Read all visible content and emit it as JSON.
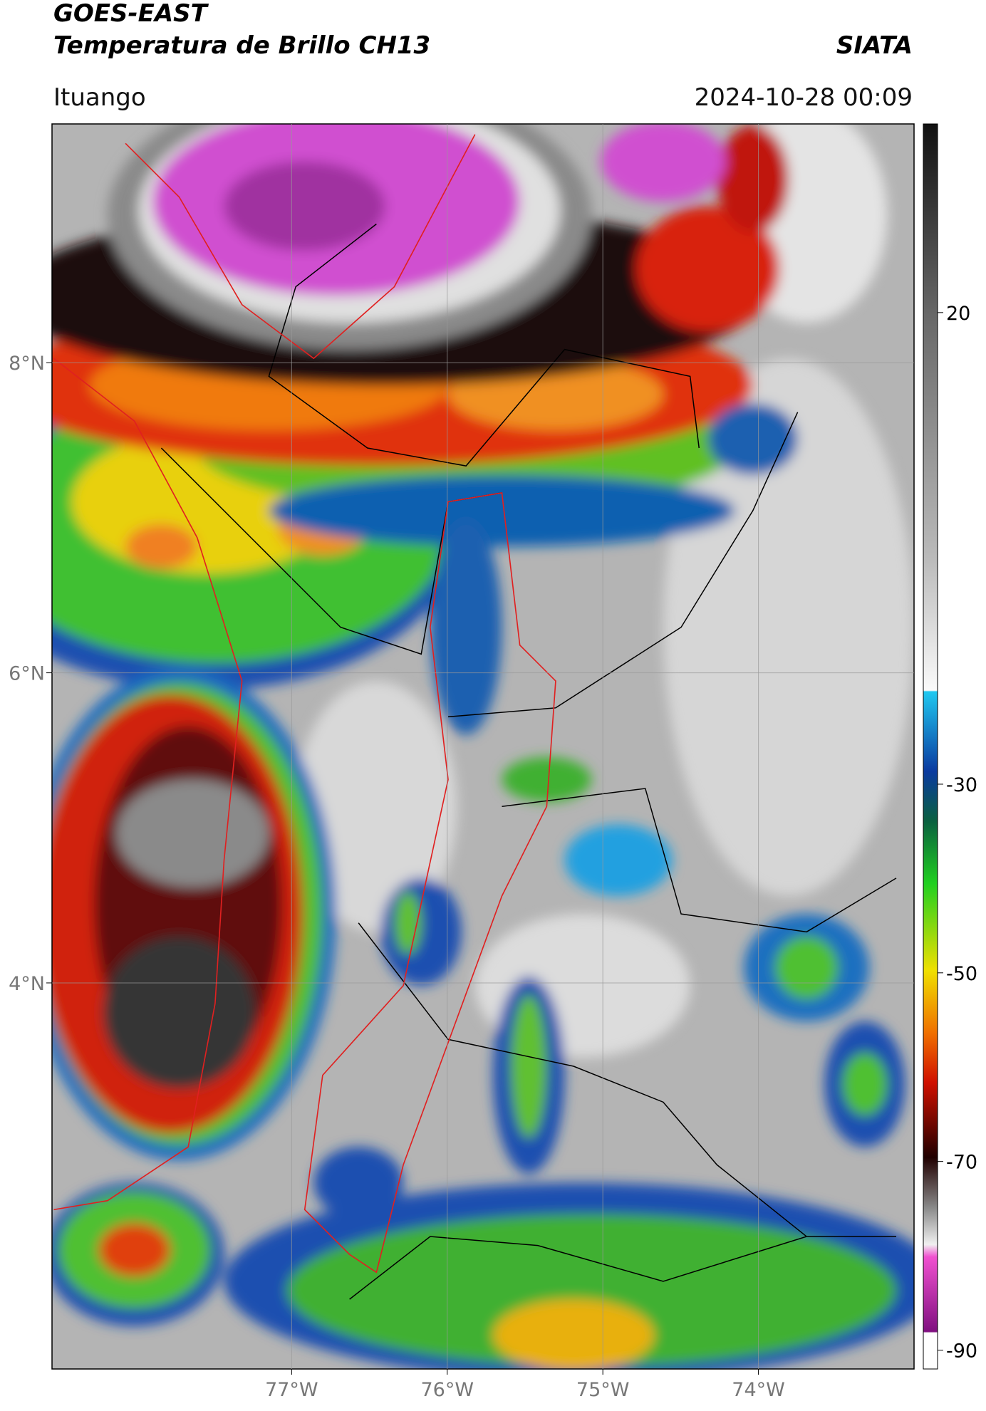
{
  "header": {
    "title": "GOES-EAST",
    "subtitle": "Temperatura de Brillo CH13",
    "brand": "SIATA",
    "location": "Ituango",
    "datetime": "2024-10-28 00:09"
  },
  "map": {
    "lon_range": [
      -78.54,
      -73.0
    ],
    "lat_range": [
      1.51,
      9.54
    ],
    "lon_ticks": [
      {
        "value": -77,
        "label": "77°W"
      },
      {
        "value": -76,
        "label": "76°W"
      },
      {
        "value": -75,
        "label": "75°W"
      },
      {
        "value": -74,
        "label": "74°W"
      }
    ],
    "lat_ticks": [
      {
        "value": 8,
        "label": "8°N"
      },
      {
        "value": 6,
        "label": "6°N"
      },
      {
        "value": 4,
        "label": "4°N"
      }
    ]
  },
  "colorbar": {
    "lim": [
      -92,
      40
    ],
    "ticks": [
      20,
      -30,
      -50,
      -70,
      -90
    ]
  }
}
